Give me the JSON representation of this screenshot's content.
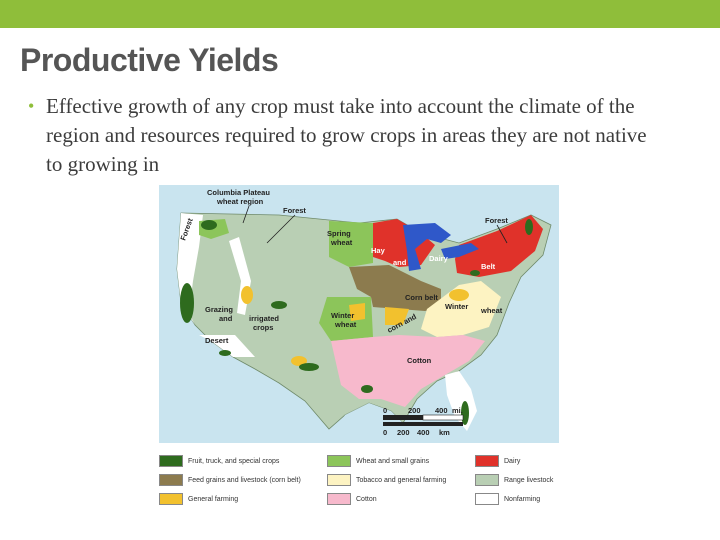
{
  "slide": {
    "title": "Productive Yields",
    "bullets": [
      "Effective growth of any crop must take into account the climate of the region and resources required to grow crops in areas they are not native to growing in"
    ]
  },
  "map": {
    "labels": {
      "columbia_1": "Columbia Plateau",
      "columbia_2": "wheat region",
      "forest_west": "Forest",
      "forest_ne": "Forest",
      "forest_nw": "Forest",
      "spring_wheat_1": "Spring",
      "spring_wheat_2": "wheat",
      "hay": "Hay",
      "and": "and",
      "dairy": "Dairy",
      "belt": "Belt",
      "corn_belt": "Corn belt",
      "winter_wheat_east": "Winter",
      "wheat_east": "wheat",
      "grazing_1": "Grazing",
      "grazing_2": "and",
      "irrigated_1": "irrigated",
      "irrigated_2": "crops",
      "winter_wheat_1": "Winter",
      "winter_wheat_2": "wheat",
      "corn_and": "corn and",
      "desert": "Desert",
      "cotton": "Cotton"
    },
    "scale": {
      "mi_0": "0",
      "mi_200": "200",
      "mi_400": "400",
      "mi_unit": "mi.",
      "km_0": "0",
      "km_200": "200",
      "km_400": "400",
      "km_unit": "km"
    }
  },
  "legend": [
    {
      "label": "Fruit, truck, and special crops",
      "color": "#2e6b1e"
    },
    {
      "label": "Feed grains and livestock (corn belt)",
      "color": "#8c7b4e"
    },
    {
      "label": "General farming",
      "color": "#f2c12e"
    },
    {
      "label": "Wheat and small grains",
      "color": "#8cc55a"
    },
    {
      "label": "Tobacco and general farming",
      "color": "#fdf3c2"
    },
    {
      "label": "Cotton",
      "color": "#f7b9cc"
    },
    {
      "label": "Dairy",
      "color": "#e0322a"
    },
    {
      "label": "Range livestock",
      "color": "#b9cfb4"
    },
    {
      "label": "Nonfarming",
      "color": "#ffffff"
    }
  ]
}
